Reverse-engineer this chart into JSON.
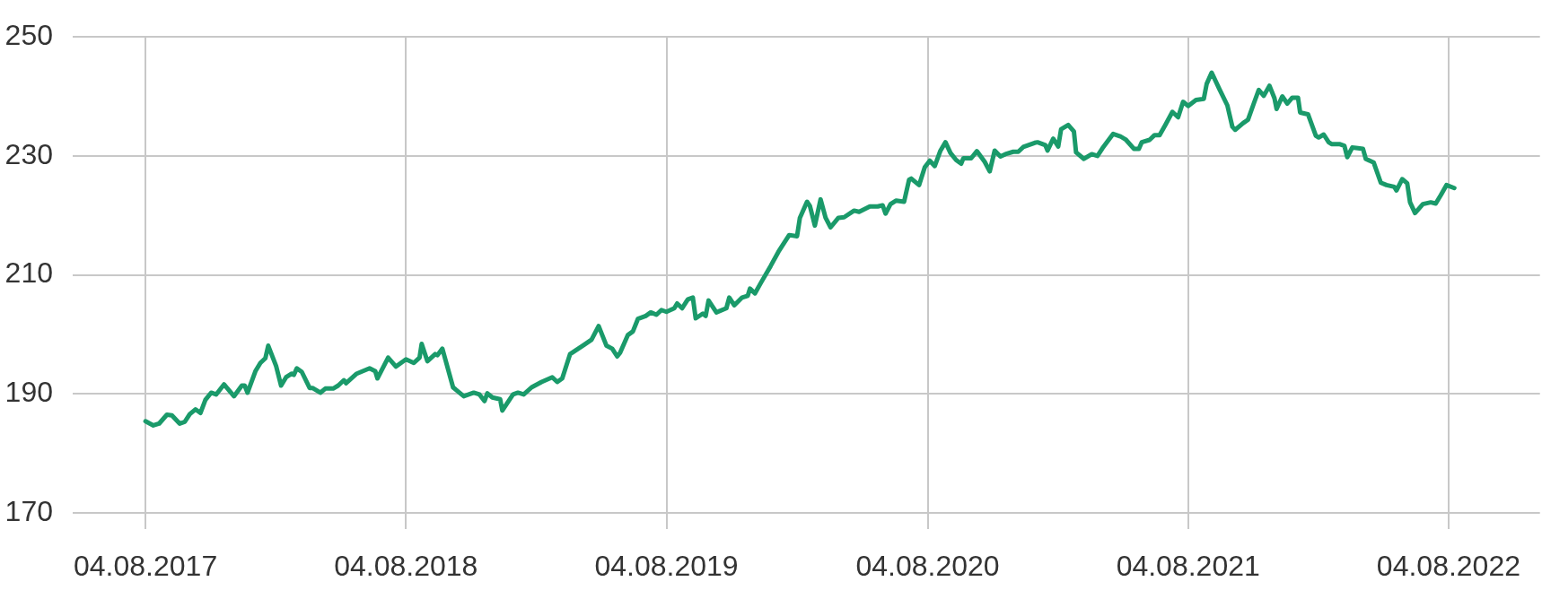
{
  "chart_data": {
    "type": "line",
    "xlim": [
      "2017-04-24",
      "2022-12-10"
    ],
    "xticks": [
      {
        "value": "2017-08-04",
        "label": "04.08.2017"
      },
      {
        "value": "2018-08-04",
        "label": "04.08.2018"
      },
      {
        "value": "2019-08-04",
        "label": "04.08.2019"
      },
      {
        "value": "2020-08-04",
        "label": "04.08.2020"
      },
      {
        "value": "2021-08-04",
        "label": "04.08.2021"
      },
      {
        "value": "2022-08-04",
        "label": "04.08.2022"
      }
    ],
    "ylim": [
      170,
      250
    ],
    "yticks": [
      170,
      190,
      210,
      230,
      250
    ],
    "grid": true,
    "legend": false,
    "marker": "none",
    "line_style": "solid",
    "series": [
      {
        "color": "#1a9a6a",
        "x": [
          "2017-08-04",
          "2017-08-15",
          "2017-08-23",
          "2017-09-03",
          "2017-09-10",
          "2017-09-21",
          "2017-09-28",
          "2017-10-05",
          "2017-10-13",
          "2017-10-20",
          "2017-10-27",
          "2017-11-04",
          "2017-11-11",
          "2017-11-22",
          "2017-12-06",
          "2017-12-17",
          "2017-12-21",
          "2017-12-25",
          "2018-01-05",
          "2018-01-12",
          "2018-01-19",
          "2018-01-23",
          "2018-02-03",
          "2018-02-10",
          "2018-02-17",
          "2018-02-25",
          "2018-02-28",
          "2018-03-04",
          "2018-03-11",
          "2018-03-22",
          "2018-03-26",
          "2018-04-06",
          "2018-04-13",
          "2018-04-24",
          "2018-05-01",
          "2018-05-09",
          "2018-05-12",
          "2018-05-27",
          "2018-06-14",
          "2018-06-22",
          "2018-06-25",
          "2018-07-10",
          "2018-07-21",
          "2018-08-04",
          "2018-08-15",
          "2018-08-23",
          "2018-08-26",
          "2018-09-03",
          "2018-09-14",
          "2018-09-17",
          "2018-09-24",
          "2018-10-09",
          "2018-10-24",
          "2018-11-07",
          "2018-11-15",
          "2018-11-22",
          "2018-11-26",
          "2018-12-03",
          "2018-12-14",
          "2018-12-17",
          "2019-01-01",
          "2019-01-08",
          "2019-01-16",
          "2019-01-27",
          "2019-02-10",
          "2019-02-25",
          "2019-03-04",
          "2019-03-11",
          "2019-03-22",
          "2019-04-10",
          "2019-04-21",
          "2019-05-01",
          "2019-05-12",
          "2019-05-20",
          "2019-05-27",
          "2019-05-31",
          "2019-06-11",
          "2019-06-18",
          "2019-06-25",
          "2019-07-06",
          "2019-07-13",
          "2019-07-21",
          "2019-07-28",
          "2019-08-04",
          "2019-08-15",
          "2019-08-19",
          "2019-08-26",
          "2019-09-03",
          "2019-09-10",
          "2019-09-14",
          "2019-09-24",
          "2019-09-28",
          "2019-10-02",
          "2019-10-13",
          "2019-10-27",
          "2019-10-31",
          "2019-11-07",
          "2019-11-18",
          "2019-11-26",
          "2019-11-29",
          "2019-12-06",
          "2019-12-14",
          "2019-12-28",
          "2020-01-08",
          "2020-01-23",
          "2020-02-03",
          "2020-02-07",
          "2020-02-17",
          "2020-02-21",
          "2020-02-28",
          "2020-03-07",
          "2020-03-14",
          "2020-03-21",
          "2020-04-01",
          "2020-04-09",
          "2020-04-23",
          "2020-04-30",
          "2020-05-15",
          "2020-05-26",
          "2020-06-02",
          "2020-06-06",
          "2020-06-13",
          "2020-06-21",
          "2020-07-02",
          "2020-07-09",
          "2020-07-12",
          "2020-07-23",
          "2020-07-31",
          "2020-08-07",
          "2020-08-14",
          "2020-08-22",
          "2020-08-29",
          "2020-09-05",
          "2020-09-13",
          "2020-09-20",
          "2020-09-23",
          "2020-10-04",
          "2020-10-12",
          "2020-10-23",
          "2020-10-30",
          "2020-11-06",
          "2020-11-14",
          "2020-11-21",
          "2020-12-02",
          "2020-12-09",
          "2020-12-16",
          "2021-01-01",
          "2021-01-05",
          "2021-01-16",
          "2021-01-19",
          "2021-01-27",
          "2021-02-03",
          "2021-02-07",
          "2021-02-17",
          "2021-02-25",
          "2021-02-28",
          "2021-03-11",
          "2021-03-22",
          "2021-03-30",
          "2021-04-06",
          "2021-04-21",
          "2021-05-01",
          "2021-05-09",
          "2021-05-20",
          "2021-05-27",
          "2021-05-31",
          "2021-06-11",
          "2021-06-18",
          "2021-06-25",
          "2021-07-03",
          "2021-07-13",
          "2021-07-21",
          "2021-07-28",
          "2021-08-04",
          "2021-08-15",
          "2021-08-26",
          "2021-08-30",
          "2021-09-06",
          "2021-09-17",
          "2021-09-28",
          "2021-10-05",
          "2021-10-09",
          "2021-10-20",
          "2021-10-27",
          "2021-11-04",
          "2021-11-11",
          "2021-11-18",
          "2021-11-26",
          "2021-12-03",
          "2021-12-06",
          "2021-12-14",
          "2021-12-21",
          "2021-12-28",
          "2022-01-05",
          "2022-01-08",
          "2022-01-19",
          "2022-01-30",
          "2022-02-03",
          "2022-02-10",
          "2022-02-17",
          "2022-02-21",
          "2022-03-04",
          "2022-03-11",
          "2022-03-15",
          "2022-03-22",
          "2022-03-30",
          "2022-04-06",
          "2022-04-10",
          "2022-04-21",
          "2022-05-01",
          "2022-05-09",
          "2022-05-20",
          "2022-05-23",
          "2022-05-31",
          "2022-06-07",
          "2022-06-11",
          "2022-06-18",
          "2022-06-29",
          "2022-07-10",
          "2022-07-17",
          "2022-07-24",
          "2022-08-01",
          "2022-08-12"
        ],
        "values": [
          185.4,
          184.7,
          185.0,
          186.5,
          186.4,
          185.0,
          185.3,
          186.6,
          187.4,
          186.8,
          189.0,
          190.2,
          189.9,
          191.6,
          189.6,
          191.4,
          191.4,
          190.2,
          193.8,
          195.2,
          196.0,
          198.1,
          194.7,
          191.4,
          192.8,
          193.4,
          193.2,
          194.3,
          193.7,
          191.0,
          191.0,
          190.2,
          190.9,
          190.9,
          191.4,
          192.3,
          191.8,
          193.4,
          194.3,
          193.8,
          192.6,
          196.1,
          194.6,
          195.8,
          195.2,
          196.1,
          198.4,
          195.5,
          196.7,
          196.5,
          197.6,
          191.1,
          189.6,
          190.2,
          189.9,
          188.8,
          190.1,
          189.4,
          189.1,
          187.2,
          189.9,
          190.2,
          189.9,
          191.1,
          192.0,
          192.8,
          192.0,
          192.6,
          196.7,
          198.2,
          199.1,
          201.4,
          198.1,
          197.6,
          196.3,
          196.9,
          199.9,
          200.5,
          202.6,
          203.1,
          203.7,
          203.3,
          204.1,
          203.8,
          204.4,
          205.2,
          204.4,
          205.9,
          206.2,
          202.7,
          203.5,
          203.1,
          205.7,
          203.7,
          204.4,
          206.2,
          204.9,
          206.2,
          206.5,
          207.7,
          206.9,
          208.6,
          211.5,
          213.9,
          216.7,
          216.5,
          219.6,
          222.3,
          221.6,
          218.3,
          222.7,
          219.6,
          218.0,
          219.6,
          219.7,
          220.8,
          220.6,
          221.5,
          221.5,
          221.7,
          220.3,
          221.9,
          222.5,
          222.3,
          226.0,
          226.2,
          225.1,
          228.1,
          229.2,
          228.3,
          230.9,
          232.3,
          230.5,
          229.3,
          228.7,
          229.6,
          229.6,
          230.8,
          229.0,
          227.4,
          230.9,
          229.9,
          230.3,
          230.7,
          230.7,
          231.5,
          232.2,
          232.3,
          231.8,
          230.9,
          232.9,
          231.6,
          234.5,
          235.2,
          234.1,
          230.6,
          229.5,
          230.3,
          230.0,
          231.3,
          233.7,
          233.3,
          232.7,
          231.2,
          231.2,
          232.3,
          232.7,
          233.5,
          233.5,
          235.2,
          237.4,
          236.5,
          239.1,
          238.4,
          239.4,
          239.6,
          242.1,
          244.0,
          241.2,
          238.5,
          234.9,
          234.4,
          235.5,
          236.1,
          238.8,
          241.1,
          240.1,
          241.8,
          239.7,
          237.9,
          240.0,
          238.8,
          239.8,
          239.8,
          237.3,
          237.0,
          233.4,
          233.1,
          233.6,
          232.3,
          232.0,
          232.0,
          231.7,
          229.8,
          231.4,
          231.3,
          231.2,
          229.5,
          228.9,
          225.5,
          225.1,
          224.8,
          224.2,
          226.1,
          225.4,
          222.2,
          220.4,
          221.9,
          222.2,
          222.0,
          223.4,
          225.1,
          224.6
        ]
      }
    ]
  }
}
